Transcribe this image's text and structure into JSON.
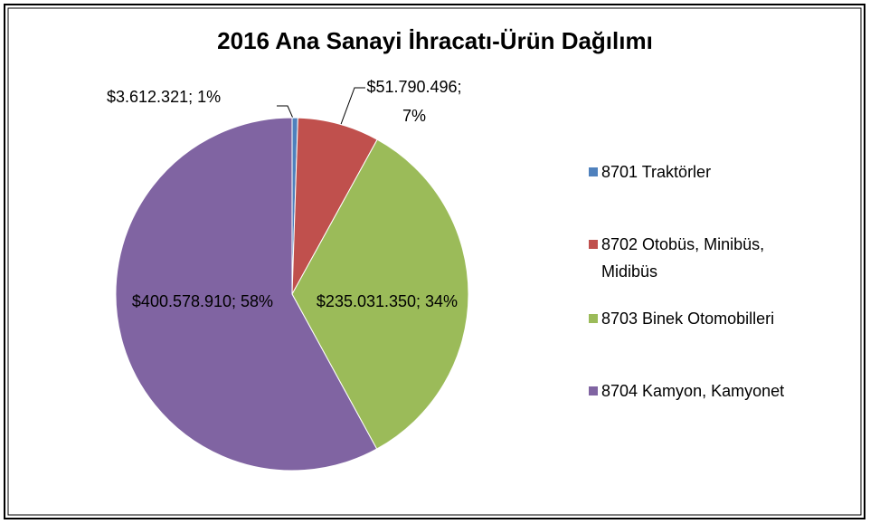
{
  "chart_data": {
    "type": "pie",
    "title": "2016 Ana Sanayi İhracatı-Ürün Dağılımı",
    "categories": [
      "8701 Traktörler",
      "8702 Otobüs, Minibüs, Midibüs",
      "8703 Binek Otomobilleri",
      "8704 Kamyon, Kamyonet"
    ],
    "values": [
      3612321,
      51790496,
      235031350,
      400578910
    ],
    "value_labels": [
      "$3.612.321; 1%",
      "$51.790.496; 7%",
      "$235.031.350; 34%",
      "$400.578.910; 58%"
    ],
    "colors": [
      "#4f81bd",
      "#c0504d",
      "#9bbb59",
      "#8064a2"
    ],
    "legend": "right"
  }
}
